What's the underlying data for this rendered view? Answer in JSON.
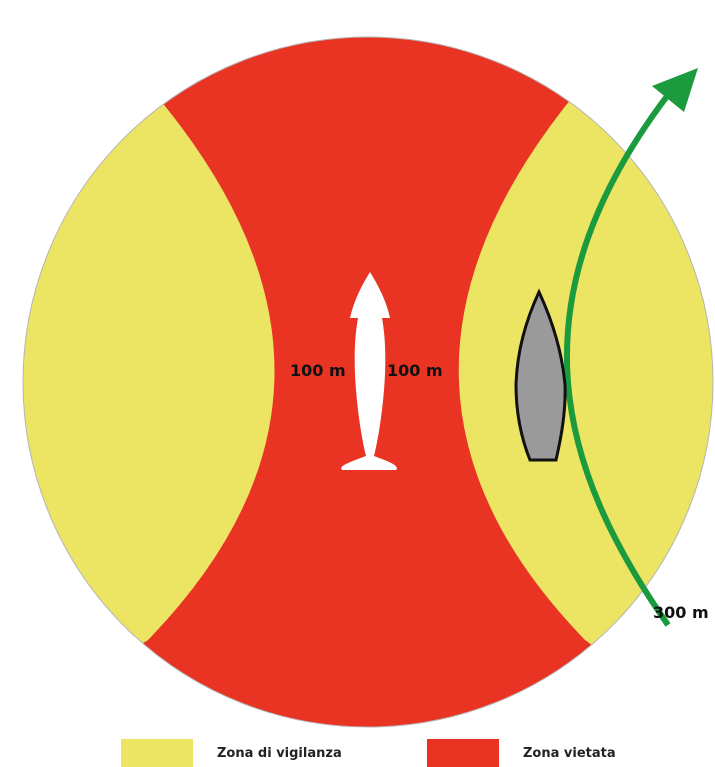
{
  "labels": {
    "left_distance": "100 m",
    "right_distance": "100 m",
    "outer_distance": "300 m"
  },
  "legend": [
    {
      "label": "Zona di vigilanza",
      "color": "#ECE564"
    },
    {
      "label": "Zona vietata",
      "color": "#E93323"
    }
  ],
  "colors": {
    "watch_zone": "#ECE564",
    "forbidden_zone": "#E93323",
    "route_arrow": "#1B9A3E",
    "boat": "#9A9A9A",
    "cetacean": "#FFFFFF"
  },
  "icons": {
    "animal": "whale-icon",
    "vessel": "boat-icon",
    "route": "route-arrow-icon"
  }
}
